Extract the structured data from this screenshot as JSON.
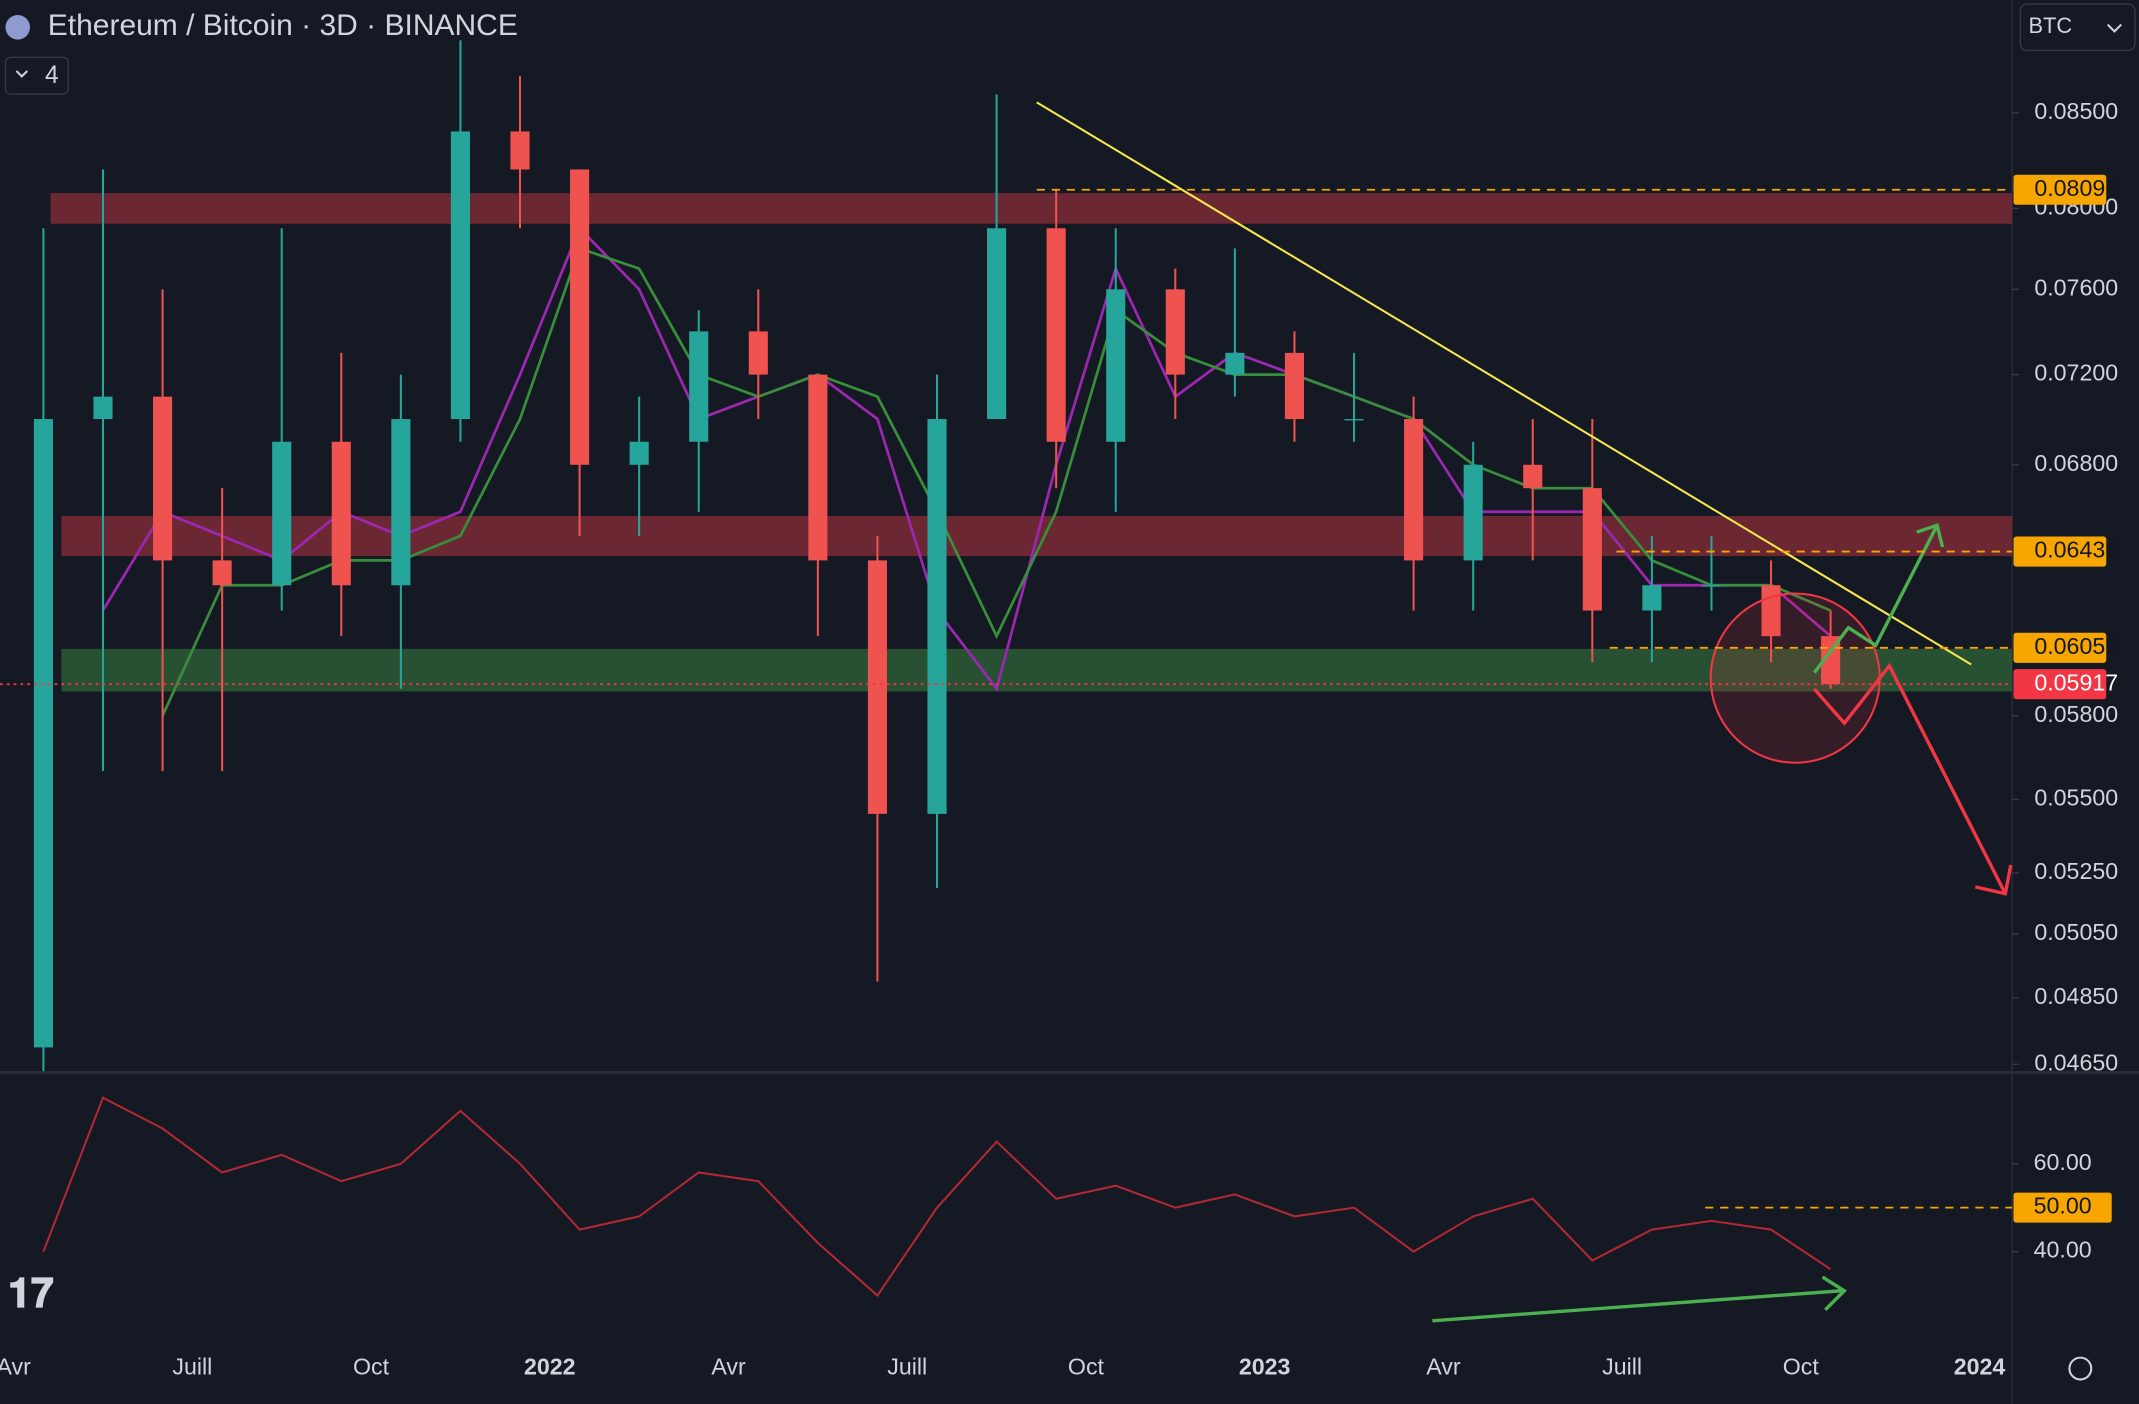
{
  "chart_data": [
    {
      "type": "candlestick",
      "title": "Ethereum / Bitcoin · 3D · BINANCE",
      "indicator_count": "4",
      "currency": "BTC",
      "categories": [
        "Avr",
        null,
        null,
        "Juill",
        null,
        null,
        "Oct",
        null,
        null,
        "2022",
        null,
        null,
        "Avr",
        null,
        null,
        "Juill",
        null,
        null,
        "Oct",
        null,
        null,
        "2023",
        null,
        null,
        "Avr",
        null,
        null,
        "Juill",
        null,
        null,
        "Oct",
        null,
        null,
        "2024"
      ],
      "open": [
        0.047,
        0.07,
        0.071,
        0.064,
        0.063,
        0.069,
        0.063,
        0.07,
        0.084,
        0.082,
        0.068,
        0.069,
        0.074,
        0.072,
        0.064,
        0.0545,
        0.07,
        0.079,
        0.069,
        0.076,
        0.072,
        0.073,
        0.07,
        0.07,
        0.064,
        0.068,
        0.067,
        0.062,
        0.063,
        0.063,
        0.061,
        null,
        null,
        null
      ],
      "high": [
        0.079,
        0.082,
        0.076,
        0.067,
        0.079,
        0.073,
        0.072,
        0.089,
        0.087,
        0.082,
        0.071,
        0.075,
        0.076,
        0.072,
        0.065,
        0.072,
        0.086,
        0.081,
        0.079,
        0.077,
        0.078,
        0.074,
        0.073,
        0.071,
        0.069,
        0.07,
        0.07,
        0.065,
        0.065,
        0.064,
        0.062,
        null,
        null,
        null
      ],
      "low": [
        0.0463,
        0.056,
        0.056,
        0.056,
        0.062,
        0.061,
        0.059,
        0.069,
        0.079,
        0.065,
        0.065,
        0.066,
        0.07,
        0.061,
        0.049,
        0.052,
        0.07,
        0.067,
        0.066,
        0.07,
        0.071,
        0.069,
        0.069,
        0.062,
        0.062,
        0.064,
        0.06,
        0.06,
        0.062,
        0.06,
        0.059,
        null,
        null,
        null
      ],
      "close": [
        0.07,
        0.071,
        0.064,
        0.063,
        0.069,
        0.063,
        0.07,
        0.084,
        0.082,
        0.068,
        0.069,
        0.074,
        0.072,
        0.064,
        0.0545,
        0.07,
        0.079,
        0.069,
        0.076,
        0.072,
        0.073,
        0.07,
        0.07,
        0.064,
        0.068,
        0.067,
        0.062,
        0.063,
        0.063,
        0.061,
        0.05917,
        null,
        null,
        null
      ],
      "up_color": "#26a69a",
      "down_color": "#ef5350",
      "series": [
        {
          "color": "#9c27b0",
          "values": [
            null,
            0.062,
            0.066,
            0.065,
            0.064,
            0.066,
            0.065,
            0.066,
            0.072,
            0.079,
            0.076,
            0.07,
            0.071,
            0.072,
            0.07,
            0.062,
            0.059,
            0.068,
            0.077,
            0.071,
            0.073,
            0.072,
            0.071,
            0.07,
            0.066,
            0.066,
            0.066,
            0.063,
            0.063,
            0.063,
            0.061,
            null,
            null,
            null
          ]
        },
        {
          "color": "#388e3c",
          "values": [
            null,
            null,
            0.058,
            0.063,
            0.063,
            0.064,
            0.064,
            0.065,
            0.07,
            0.078,
            0.077,
            0.072,
            0.071,
            0.072,
            0.071,
            0.066,
            0.061,
            0.066,
            0.075,
            0.073,
            0.072,
            0.072,
            0.071,
            0.07,
            0.068,
            0.067,
            0.067,
            0.064,
            0.063,
            0.063,
            0.062,
            null,
            null,
            null
          ]
        }
      ],
      "log": true,
      "ylim": [
        0.0463,
        0.0913
      ],
      "yticks": [
        {
          "value": 0.085,
          "label": "0.08500"
        },
        {
          "value": 0.08,
          "label": "0.08000"
        },
        {
          "value": 0.076,
          "label": "0.07600"
        },
        {
          "value": 0.072,
          "label": "0.07200"
        },
        {
          "value": 0.068,
          "label": "0.06800"
        },
        {
          "value": 0.058,
          "label": "0.05800"
        },
        {
          "value": 0.055,
          "label": "0.05500"
        },
        {
          "value": 0.0525,
          "label": "0.05250"
        },
        {
          "value": 0.0505,
          "label": "0.05050"
        },
        {
          "value": 0.0485,
          "label": "0.04850"
        },
        {
          "value": 0.0465,
          "label": "0.04650"
        }
      ],
      "zones": [
        {
          "range": [
            0.0795,
            0.0805
          ],
          "color": "#7a2a35"
        },
        {
          "range": [
            0.0644,
            0.0656
          ],
          "color": "#7a2a35"
        },
        {
          "range": [
            0.0591,
            0.0603
          ],
          "color": "#2c5a35"
        }
      ],
      "hlines": [
        {
          "value": 0.08095,
          "color": "#f7a600"
        },
        {
          "value": 0.06436,
          "color": "#f7a600"
        },
        {
          "value": 0.06055,
          "color": "#f7a600"
        },
        {
          "value": 0.05917,
          "color": "#f23645"
        }
      ]
    },
    {
      "type": "line",
      "series": [
        {
          "color": "#b22833",
          "values": [
            40,
            75,
            68,
            58,
            62,
            56,
            60,
            72,
            60,
            45,
            48,
            58,
            56,
            42,
            30,
            50,
            65,
            52,
            55,
            50,
            53,
            48,
            50,
            40,
            48,
            52,
            38,
            45,
            47,
            45,
            36,
            null,
            null,
            null
          ]
        }
      ],
      "ylim": [
        19,
        79.5
      ],
      "yticks": [
        {
          "value": 60,
          "label": "60.00"
        },
        {
          "value": 40,
          "label": "40.00"
        }
      ],
      "hlines": [
        {
          "value": 50,
          "label": "50.00",
          "color": "#f7a600"
        }
      ]
    }
  ]
}
